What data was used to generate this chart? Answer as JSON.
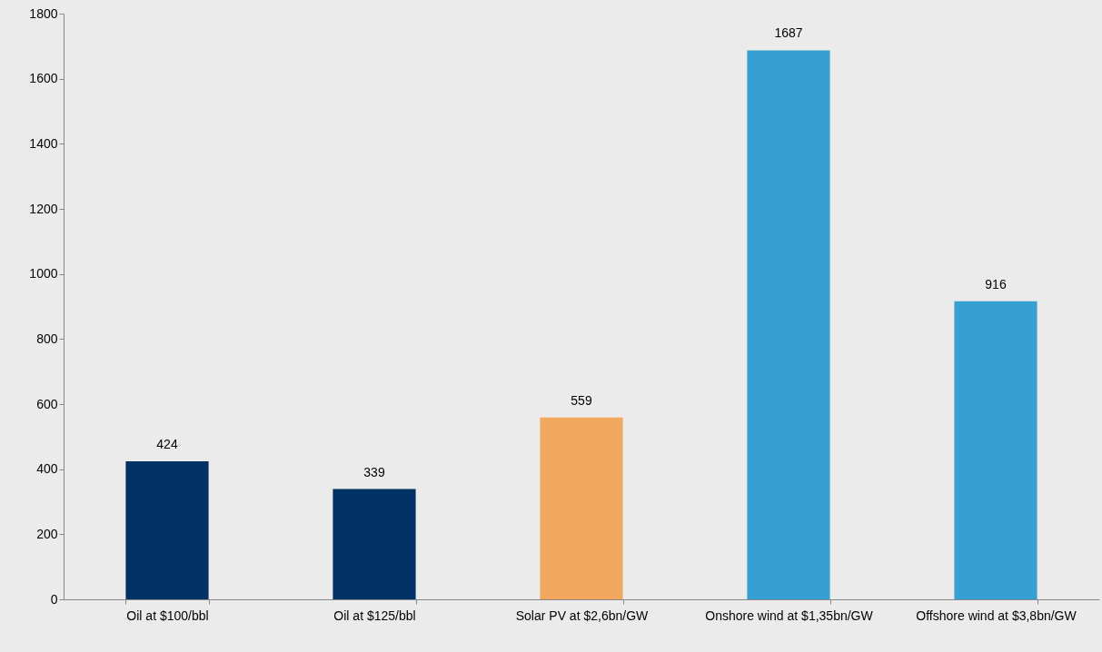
{
  "chart_data": {
    "type": "bar",
    "categories": [
      "Oil at $100/bbl",
      "Oil at $125/bbl",
      "Solar PV at $2,6bn/GW",
      "Onshore wind at $1,35bn/GW",
      "Offshore wind at $3,8bn/GW"
    ],
    "values": [
      424,
      339,
      559,
      1687,
      916
    ],
    "colors": [
      "#003263",
      "#003263",
      "#f3a65d",
      "#369fd4",
      "#369fd4"
    ],
    "ylim": [
      0,
      1800
    ],
    "yticks": [
      0,
      200,
      400,
      600,
      800,
      1000,
      1200,
      1400,
      1600,
      1800
    ],
    "grid": false,
    "data_labels": true
  }
}
